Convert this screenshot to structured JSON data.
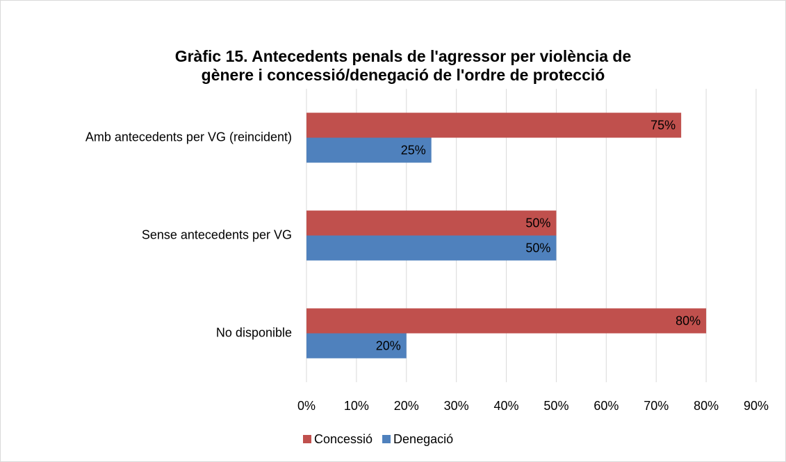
{
  "chart_data": {
    "type": "bar",
    "orientation": "horizontal",
    "title": [
      "Gràfic 15. Antecedents penals de l'agressor per violència de",
      "gènere i concessió/denegació de l'ordre de protecció"
    ],
    "categories": [
      "Amb antecedents per VG (reincident)",
      "Sense antecedents per VG",
      "No disponible"
    ],
    "series": [
      {
        "name": "Concessió",
        "color": "#c0504d",
        "values": [
          75,
          50,
          80
        ],
        "value_labels": [
          "75%",
          "50%",
          "80%"
        ]
      },
      {
        "name": "Denegació",
        "color": "#4f81bd",
        "values": [
          25,
          50,
          20
        ],
        "value_labels": [
          "25%",
          "50%",
          "20%"
        ]
      }
    ],
    "xlim": [
      0,
      90
    ],
    "xticks": [
      {
        "value": 0,
        "label": "0%"
      },
      {
        "value": 10,
        "label": "10%"
      },
      {
        "value": 20,
        "label": "20%"
      },
      {
        "value": 30,
        "label": "30%"
      },
      {
        "value": 40,
        "label": "40%"
      },
      {
        "value": 50,
        "label": "50%"
      },
      {
        "value": 60,
        "label": "60%"
      },
      {
        "value": 70,
        "label": "70%"
      },
      {
        "value": 80,
        "label": "80%"
      },
      {
        "value": 90,
        "label": "90%"
      }
    ],
    "grid": true,
    "legend": "bottom"
  }
}
